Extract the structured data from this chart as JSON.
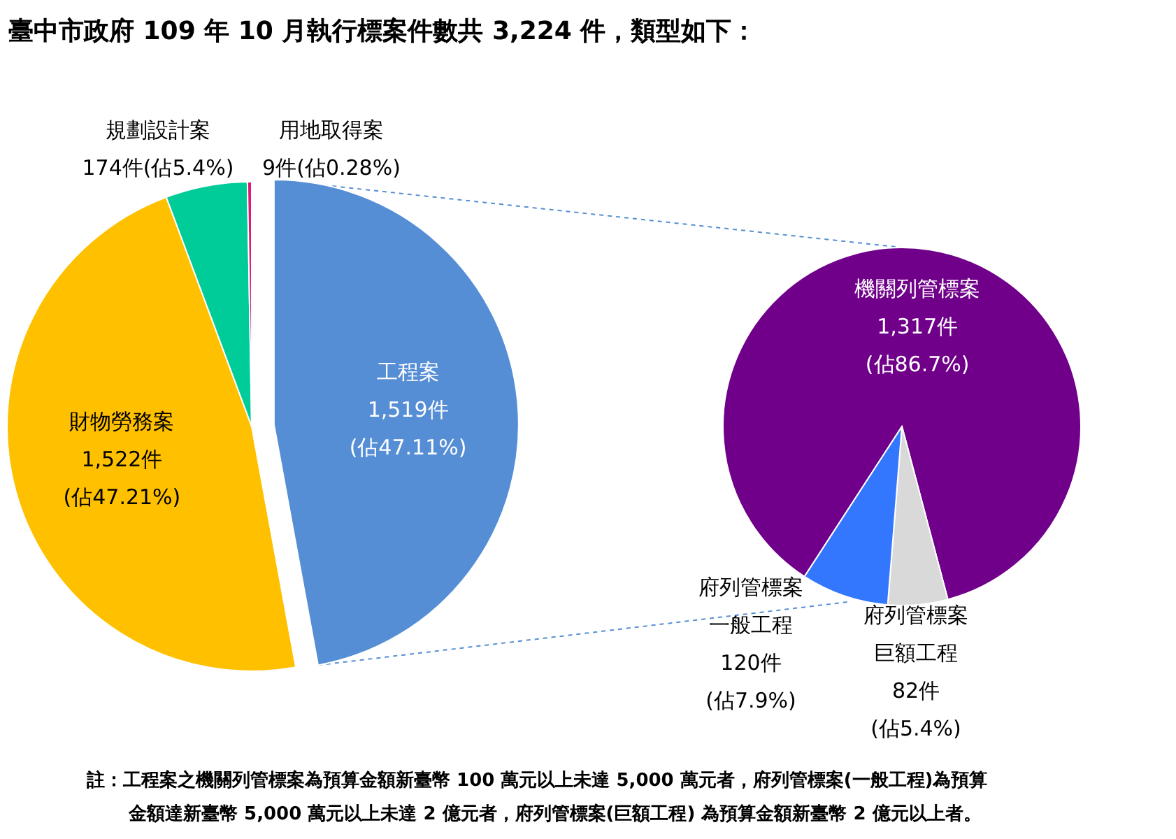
{
  "chart_data": [
    {
      "type": "pie",
      "title": "臺中市政府 109 年 10 月執行標案件數共 3,224 件，類型如下：",
      "categories": [
        "工程案",
        "財物勞務案",
        "規劃設計案",
        "用地取得案"
      ],
      "values": [
        1519,
        1522,
        174,
        9
      ],
      "colors": [
        "#558ed5",
        "#ffc000",
        "#00cc99",
        "#e0187a"
      ],
      "value_labels": [
        "1,519件\n(佔47.11%)",
        "1,522件\n(佔47.21%)",
        "174件(佔5.4%)",
        "9件(佔0.28%)"
      ],
      "annotations": [
        "註：工程案之機關列管標案為預算金額新臺幣 100 萬元以上未達 5,000 萬元者，府列管標案(一般工程)為預算",
        "金額達新臺幣 5,000 萬元以上未達 2 億元者，府列管標案(巨額工程)  為預算金額新臺幣 2 億元以上者。"
      ]
    },
    {
      "type": "pie",
      "categories": [
        "機關列管標案",
        "府列管標案巨額工程",
        "府列管標案一般工程"
      ],
      "values": [
        1317,
        82,
        120
      ],
      "colors": [
        "#70008a",
        "#d9d9d9",
        "#3377ff"
      ],
      "value_labels": [
        "1,317件\n(佔86.7%)",
        "82件\n(佔5.4%)",
        "120件\n(佔7.9%)"
      ]
    }
  ]
}
